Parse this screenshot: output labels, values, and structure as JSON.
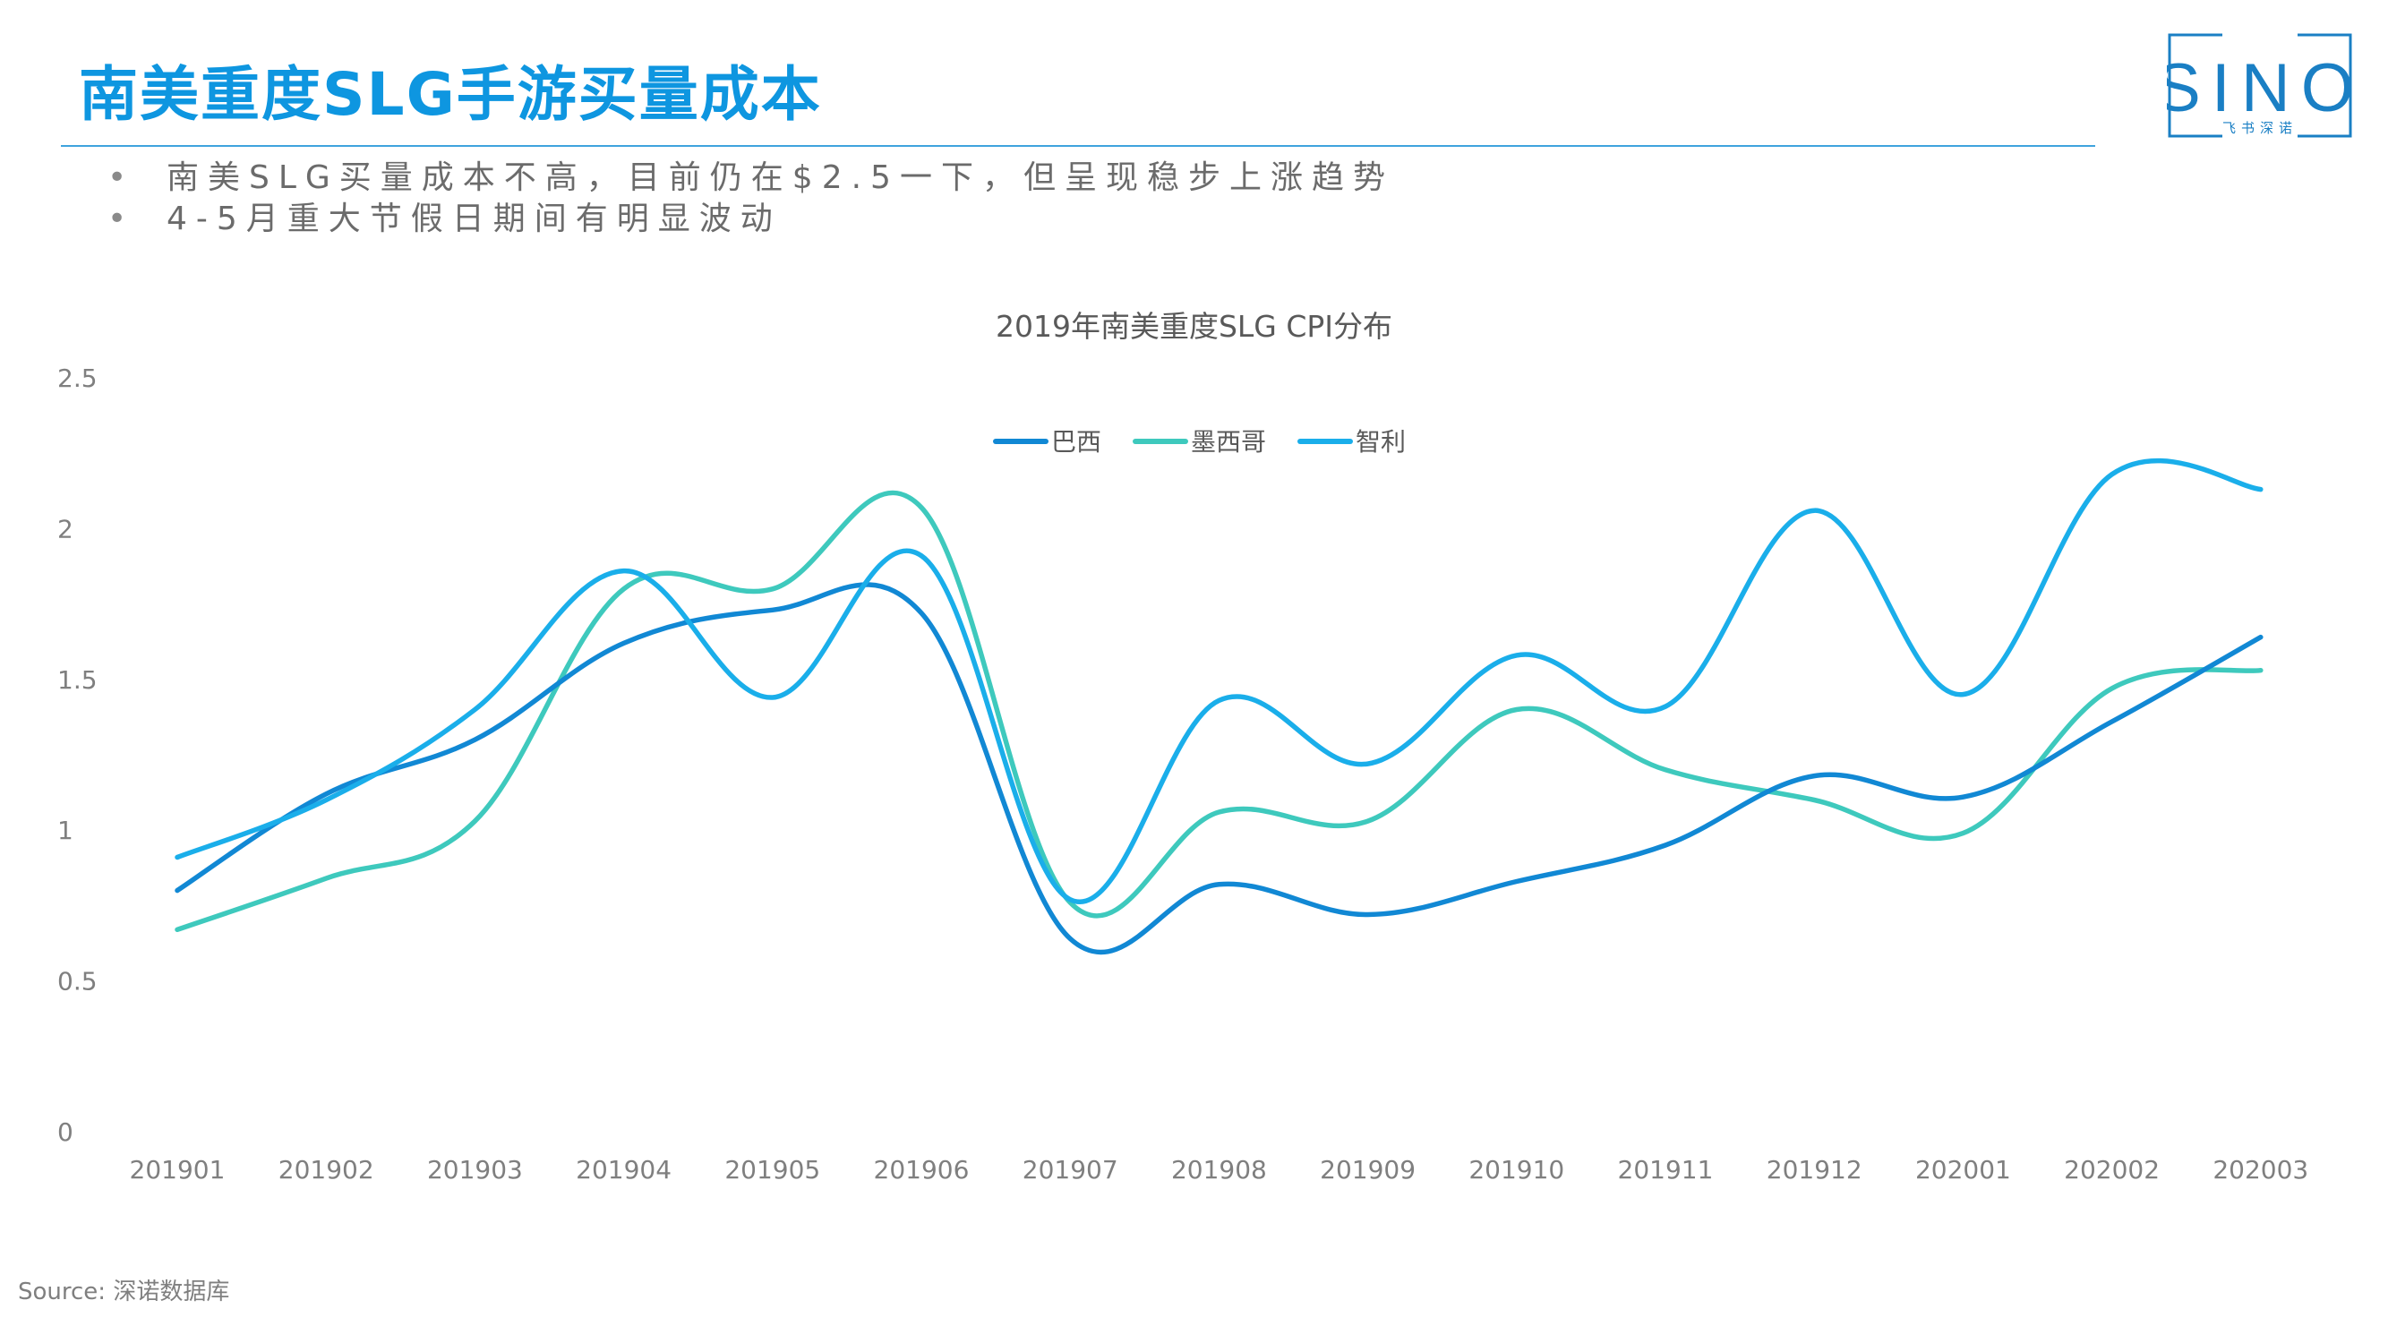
{
  "page": {
    "title": "南美重度SLG手游买量成本",
    "bullets": [
      "南美SLG买量成本不高，目前仍在$2.5一下，但呈现稳步上涨趋势",
      "4-5月重大节假日期间有明显波动"
    ],
    "bullet_marker": "•",
    "source": "Source: 深诺数据库"
  },
  "logo": {
    "text": "SINO",
    "subtitle": "飞书深诺",
    "icon": "sino-logo",
    "color": "#1a7fc4"
  },
  "colors": {
    "title": "#0e96e0",
    "series": [
      "#1188d4",
      "#3ec9bd",
      "#1aaeea"
    ]
  },
  "chart_data": {
    "type": "line",
    "smooth": true,
    "title": "2019年南美重度SLG CPI分布",
    "categories": [
      "201901",
      "201902",
      "201903",
      "201904",
      "201905",
      "201906",
      "201907",
      "201908",
      "201909",
      "201910",
      "201911",
      "201912",
      "202001",
      "202002",
      "202003"
    ],
    "yticks": [
      "0",
      "0.5",
      "1",
      "1.5",
      "2",
      "2.5"
    ],
    "ylim": [
      0,
      2.5
    ],
    "grid": false,
    "legend_position": "top-center",
    "series": [
      {
        "name": "巴西",
        "color": "#1188d4",
        "values": [
          0.8,
          1.12,
          1.3,
          1.62,
          1.73,
          1.72,
          0.64,
          0.82,
          0.72,
          0.83,
          0.95,
          1.18,
          1.11,
          1.36,
          1.64
        ]
      },
      {
        "name": "墨西哥",
        "color": "#3ec9bd",
        "values": [
          0.67,
          0.84,
          1.03,
          1.8,
          1.8,
          2.07,
          0.76,
          1.06,
          1.03,
          1.4,
          1.2,
          1.1,
          0.99,
          1.47,
          1.53
        ]
      },
      {
        "name": "智利",
        "color": "#1aaeea",
        "values": [
          0.91,
          1.1,
          1.4,
          1.86,
          1.44,
          1.91,
          0.77,
          1.43,
          1.22,
          1.58,
          1.41,
          2.06,
          1.45,
          2.18,
          2.13
        ]
      }
    ]
  }
}
